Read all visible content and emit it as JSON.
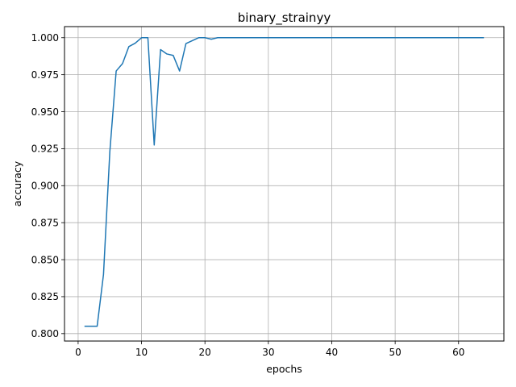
{
  "chart_data": {
    "type": "line",
    "title": "binary_strainyy",
    "xlabel": "epochs",
    "ylabel": "accuracy",
    "xlim": [
      -2.15,
      67.15
    ],
    "ylim": [
      0.795,
      1.0075
    ],
    "xticks": [
      0,
      10,
      20,
      30,
      40,
      50,
      60
    ],
    "yticks": [
      0.8,
      0.825,
      0.85,
      0.875,
      0.9,
      0.925,
      0.95,
      0.975,
      1.0
    ],
    "xtick_labels": [
      "0",
      "10",
      "20",
      "30",
      "40",
      "50",
      "60"
    ],
    "ytick_labels": [
      "0.800",
      "0.825",
      "0.850",
      "0.875",
      "0.900",
      "0.925",
      "0.950",
      "0.975",
      "1.000"
    ],
    "grid": true,
    "series": [
      {
        "color": "#1f77b4",
        "x": [
          1,
          2,
          3,
          4,
          5,
          6,
          7,
          8,
          9,
          10,
          11,
          12,
          13,
          14,
          15,
          16,
          17,
          18,
          19,
          20,
          21,
          22,
          23,
          24,
          25,
          26,
          27,
          28,
          29,
          30,
          31,
          32,
          33,
          34,
          35,
          36,
          37,
          38,
          39,
          40,
          41,
          42,
          43,
          44,
          45,
          46,
          47,
          48,
          49,
          50,
          51,
          52,
          53,
          54,
          55,
          56,
          57,
          58,
          59,
          60,
          61,
          62,
          63,
          64
        ],
        "y": [
          0.805,
          0.805,
          0.805,
          0.84,
          0.923,
          0.9775,
          0.9825,
          0.994,
          0.9963,
          1.0,
          1.0,
          0.9275,
          0.992,
          0.989,
          0.988,
          0.9775,
          0.996,
          0.998,
          1.0,
          1.0,
          0.999,
          1.0,
          1.0,
          1.0,
          1.0,
          1.0,
          1.0,
          1.0,
          1.0,
          1.0,
          1.0,
          1.0,
          1.0,
          1.0,
          1.0,
          1.0,
          1.0,
          1.0,
          1.0,
          1.0,
          1.0,
          1.0,
          1.0,
          1.0,
          1.0,
          1.0,
          1.0,
          1.0,
          1.0,
          1.0,
          1.0,
          1.0,
          1.0,
          1.0,
          1.0,
          1.0,
          1.0,
          1.0,
          1.0,
          1.0,
          1.0,
          1.0,
          1.0,
          1.0
        ]
      }
    ]
  }
}
